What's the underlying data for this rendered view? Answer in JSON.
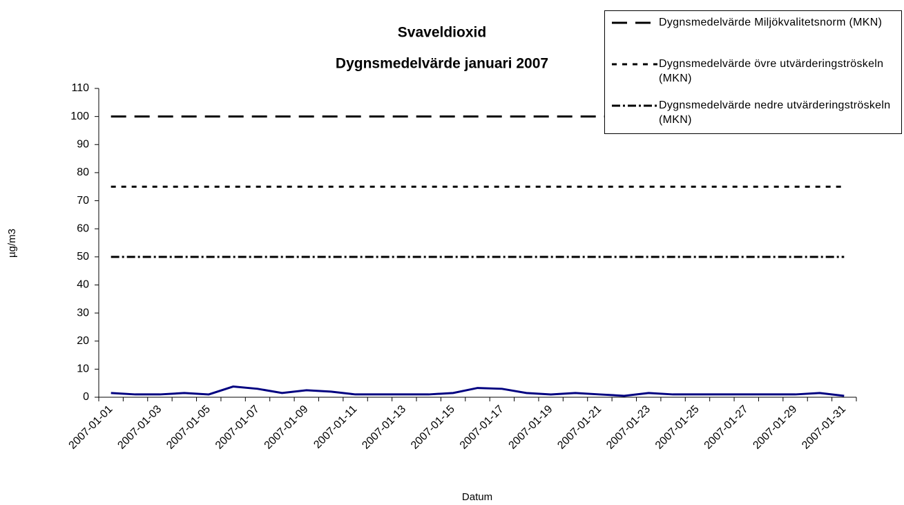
{
  "chart_data": {
    "type": "line",
    "title": "Svaveldioxid",
    "subtitle": "Dygnsmedelvärde januari 2007",
    "x_label": "Datum",
    "y_label": "µg/m3",
    "categories": [
      "2007-01-01",
      null,
      "2007-01-03",
      null,
      "2007-01-05",
      null,
      "2007-01-07",
      null,
      "2007-01-09",
      null,
      "2007-01-11",
      null,
      "2007-01-13",
      null,
      "2007-01-15",
      null,
      "2007-01-17",
      null,
      "2007-01-19",
      null,
      "2007-01-21",
      null,
      "2007-01-23",
      null,
      "2007-01-25",
      null,
      "2007-01-27",
      null,
      "2007-01-29",
      null,
      "2007-01-31"
    ],
    "series": [
      {
        "color": "#000080",
        "style": "solid",
        "values": [
          1.5,
          1,
          1,
          1.5,
          1,
          3.8,
          3,
          1.5,
          2.5,
          2,
          1,
          1,
          1,
          1,
          1.5,
          3.3,
          3,
          1.5,
          1,
          1.5,
          1,
          0.5,
          1.5,
          1,
          1,
          1,
          1,
          1,
          1,
          1.5,
          0.5
        ]
      },
      {
        "name": "Dygnsmedelvärde Miljökvalitetsnorm (MKN)",
        "color": "#000000",
        "style": "dashed",
        "values": [
          100,
          100,
          100,
          100,
          100,
          100,
          100,
          100,
          100,
          100,
          100,
          100,
          100,
          100,
          100,
          100,
          100,
          100,
          100,
          100,
          100,
          100,
          100,
          100,
          100,
          100,
          100,
          100,
          100,
          100,
          100
        ]
      },
      {
        "name": "Dygnsmedelvärde övre utvärderingströskeln (MKN)",
        "color": "#000000",
        "style": "dotted",
        "values": [
          75,
          75,
          75,
          75,
          75,
          75,
          75,
          75,
          75,
          75,
          75,
          75,
          75,
          75,
          75,
          75,
          75,
          75,
          75,
          75,
          75,
          75,
          75,
          75,
          75,
          75,
          75,
          75,
          75,
          75,
          75
        ]
      },
      {
        "name": "Dygnsmedelvärde nedre utvärderingströskeln (MKN)",
        "color": "#000000",
        "style": "dashdot",
        "values": [
          50,
          50,
          50,
          50,
          50,
          50,
          50,
          50,
          50,
          50,
          50,
          50,
          50,
          50,
          50,
          50,
          50,
          50,
          50,
          50,
          50,
          50,
          50,
          50,
          50,
          50,
          50,
          50,
          50,
          50,
          50
        ]
      }
    ],
    "ylim": [
      0,
      110
    ],
    "yticks": [
      0,
      10,
      20,
      30,
      40,
      50,
      60,
      70,
      80,
      90,
      100,
      110
    ],
    "grid": false,
    "legend": "top-right"
  }
}
